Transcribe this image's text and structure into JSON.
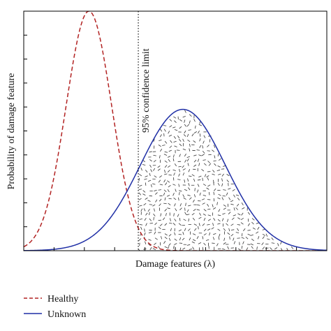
{
  "chart_data": {
    "type": "line",
    "title": "",
    "xlabel": "Damage features (λ)",
    "ylabel": "Probability of damage feature",
    "xlim": [
      0,
      10
    ],
    "ylim": [
      0,
      1
    ],
    "x_ticks": [
      0,
      1,
      2,
      3,
      4,
      5,
      6,
      7,
      8,
      9,
      10
    ],
    "y_ticks": [
      0,
      0.1,
      0.2,
      0.3,
      0.4,
      0.5,
      0.6,
      0.7,
      0.8,
      0.9,
      1.0
    ],
    "grid": false,
    "legend_position": "below",
    "series": [
      {
        "name": "Healthy",
        "style": "dashed",
        "color": "#b22222",
        "distribution": "normal",
        "mean": 2.15,
        "sd": 0.75,
        "peak": 1.0
      },
      {
        "name": "Unknown",
        "style": "solid",
        "color": "#1f2fa6",
        "distribution": "normal",
        "mean": 5.25,
        "sd": 1.4,
        "peak": 0.59
      }
    ],
    "threshold": {
      "x": 3.78,
      "label": "95% confidence limit",
      "style": "dotted"
    },
    "shaded_region": "area under Unknown curve to the right of the 95% confidence limit (hatched)"
  }
}
